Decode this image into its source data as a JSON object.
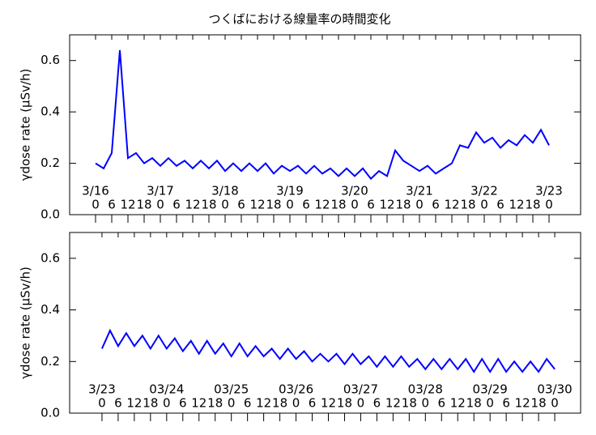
{
  "chart_data": [
    {
      "type": "line",
      "title": "つくばにおける線量率の時間変化",
      "ylabel": "γdose rate (μSv/h)",
      "color": "#0000ff",
      "xlim": [
        -9.6,
        179.7
      ],
      "ylim": [
        0,
        0.7
      ],
      "yticks": [
        {
          "value": 0,
          "label": "0.0"
        },
        {
          "value": 0.2,
          "label": "0.2"
        },
        {
          "value": 0.4,
          "label": "0.4"
        },
        {
          "value": 0.6,
          "label": "0.6"
        }
      ],
      "xticks": [
        0,
        6,
        12,
        18,
        {
          "value": 24,
          "label": "0"
        },
        {
          "value": 30,
          "label": "6"
        },
        {
          "value": 36,
          "label": "12"
        },
        {
          "value": 42,
          "label": "18"
        },
        {
          "value": 48,
          "label": "0"
        },
        {
          "value": 54,
          "label": "6"
        },
        {
          "value": 60,
          "label": "12"
        },
        {
          "value": 66,
          "label": "18"
        },
        {
          "value": 72,
          "label": "0"
        },
        {
          "value": 78,
          "label": "6"
        },
        {
          "value": 84,
          "label": "12"
        },
        {
          "value": 90,
          "label": "18"
        },
        {
          "value": 96,
          "label": "0"
        },
        {
          "value": 102,
          "label": "6"
        },
        {
          "value": 108,
          "label": "12"
        },
        {
          "value": 114,
          "label": "18"
        },
        {
          "value": 120,
          "label": "0"
        },
        {
          "value": 126,
          "label": "6"
        },
        {
          "value": 132,
          "label": "12"
        },
        {
          "value": 138,
          "label": "18"
        },
        {
          "value": 144,
          "label": "0"
        },
        {
          "value": 150,
          "label": "6"
        },
        {
          "value": 156,
          "label": "12"
        },
        {
          "value": 162,
          "label": "18"
        },
        {
          "value": 168,
          "label": "0"
        }
      ],
      "date_ticks": [
        {
          "value": 0,
          "label": "3/16"
        },
        {
          "value": 24,
          "label": "3/17"
        },
        {
          "value": 48,
          "label": "3/18"
        },
        {
          "value": 72,
          "label": "3/19"
        },
        {
          "value": 96,
          "label": "3/20"
        },
        {
          "value": 120,
          "label": "3/21"
        },
        {
          "value": 144,
          "label": "3/22"
        },
        {
          "value": 168,
          "label": "3/23"
        }
      ],
      "x": [
        0,
        3,
        6,
        9,
        12,
        15,
        18,
        21,
        24,
        27,
        30,
        33,
        36,
        39,
        42,
        45,
        48,
        51,
        54,
        57,
        60,
        63,
        66,
        69,
        72,
        75,
        78,
        81,
        84,
        87,
        90,
        93,
        96,
        99,
        102,
        105,
        108,
        111,
        114,
        117,
        120,
        123,
        126,
        129,
        132,
        135,
        138,
        141,
        144,
        147,
        150,
        153,
        156,
        159,
        162,
        165,
        168
      ],
      "values": [
        0.2,
        0.18,
        0.24,
        0.64,
        0.22,
        0.24,
        0.2,
        0.22,
        0.19,
        0.22,
        0.19,
        0.21,
        0.18,
        0.21,
        0.18,
        0.21,
        0.17,
        0.2,
        0.17,
        0.2,
        0.17,
        0.2,
        0.16,
        0.19,
        0.17,
        0.19,
        0.16,
        0.19,
        0.16,
        0.18,
        0.15,
        0.18,
        0.15,
        0.18,
        0.14,
        0.17,
        0.15,
        0.25,
        0.21,
        0.19,
        0.17,
        0.19,
        0.16,
        0.18,
        0.2,
        0.27,
        0.26,
        0.32,
        0.28,
        0.3,
        0.26,
        0.29,
        0.27,
        0.31,
        0.28,
        0.33,
        0.27
      ]
    },
    {
      "type": "line",
      "ylabel": "γdose rate (μSv/h)",
      "color": "#0000ff",
      "xlim": [
        -12,
        177.6
      ],
      "ylim": [
        0,
        0.7
      ],
      "yticks": [
        {
          "value": 0,
          "label": "0.0"
        },
        {
          "value": 0.2,
          "label": "0.2"
        },
        {
          "value": 0.4,
          "label": "0.4"
        },
        {
          "value": 0.6,
          "label": "0.6"
        }
      ],
      "xticks": [
        0,
        6,
        12,
        18,
        {
          "value": 24,
          "label": "0"
        },
        {
          "value": 30,
          "label": "6"
        },
        {
          "value": 36,
          "label": "12"
        },
        {
          "value": 42,
          "label": "18"
        },
        {
          "value": 48,
          "label": "0"
        },
        {
          "value": 54,
          "label": "6"
        },
        {
          "value": 60,
          "label": "12"
        },
        {
          "value": 66,
          "label": "18"
        },
        {
          "value": 72,
          "label": "0"
        },
        {
          "value": 78,
          "label": "6"
        },
        {
          "value": 84,
          "label": "12"
        },
        {
          "value": 90,
          "label": "18"
        },
        {
          "value": 96,
          "label": "0"
        },
        {
          "value": 102,
          "label": "6"
        },
        {
          "value": 108,
          "label": "12"
        },
        {
          "value": 114,
          "label": "18"
        },
        {
          "value": 120,
          "label": "0"
        },
        {
          "value": 126,
          "label": "6"
        },
        {
          "value": 132,
          "label": "12"
        },
        {
          "value": 138,
          "label": "18"
        },
        {
          "value": 144,
          "label": "0"
        },
        {
          "value": 150,
          "label": "6"
        },
        {
          "value": 156,
          "label": "12"
        },
        {
          "value": 162,
          "label": "18"
        },
        {
          "value": 168,
          "label": "0"
        }
      ],
      "date_ticks": [
        {
          "value": 0,
          "label": "3/23"
        },
        {
          "value": 24,
          "label": "03/24"
        },
        {
          "value": 48,
          "label": "03/25"
        },
        {
          "value": 72,
          "label": "03/26"
        },
        {
          "value": 96,
          "label": "03/27"
        },
        {
          "value": 120,
          "label": "03/28"
        },
        {
          "value": 144,
          "label": "03/29"
        },
        {
          "value": 168,
          "label": "03/30"
        }
      ],
      "x": [
        0,
        3,
        6,
        9,
        12,
        15,
        18,
        21,
        24,
        27,
        30,
        33,
        36,
        39,
        42,
        45,
        48,
        51,
        54,
        57,
        60,
        63,
        66,
        69,
        72,
        75,
        78,
        81,
        84,
        87,
        90,
        93,
        96,
        99,
        102,
        105,
        108,
        111,
        114,
        117,
        120,
        123,
        126,
        129,
        132,
        135,
        138,
        141,
        144,
        147,
        150,
        153,
        156,
        159,
        162,
        165,
        168
      ],
      "values": [
        0.25,
        0.32,
        0.26,
        0.31,
        0.26,
        0.3,
        0.25,
        0.3,
        0.25,
        0.29,
        0.24,
        0.28,
        0.23,
        0.28,
        0.23,
        0.27,
        0.22,
        0.27,
        0.22,
        0.26,
        0.22,
        0.25,
        0.21,
        0.25,
        0.21,
        0.24,
        0.2,
        0.23,
        0.2,
        0.23,
        0.19,
        0.23,
        0.19,
        0.22,
        0.18,
        0.22,
        0.18,
        0.22,
        0.18,
        0.21,
        0.17,
        0.21,
        0.17,
        0.21,
        0.17,
        0.21,
        0.16,
        0.21,
        0.16,
        0.21,
        0.16,
        0.2,
        0.16,
        0.2,
        0.16,
        0.21,
        0.17
      ]
    }
  ]
}
